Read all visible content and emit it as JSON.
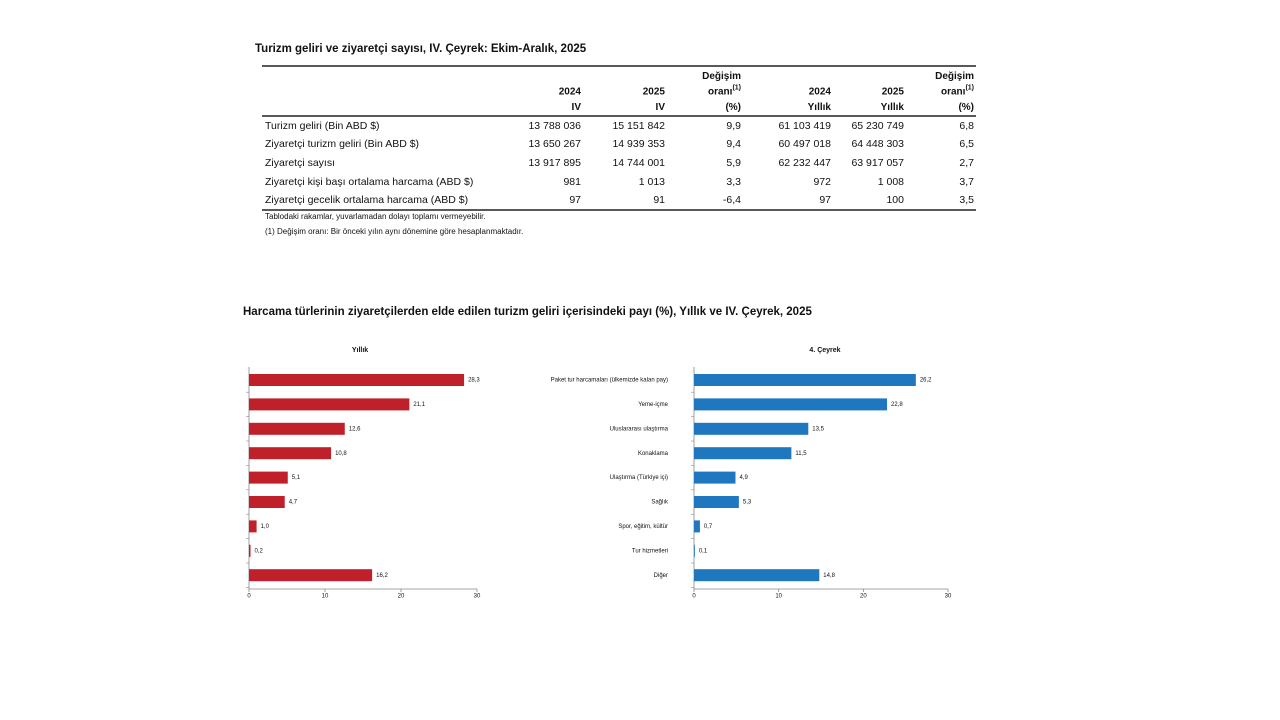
{
  "table": {
    "title": "Turizm geliri ve ziyaretçi sayısı, IV. Çeyrek: Ekim-Aralık, 2025",
    "header": [
      {
        "lines": [
          "2024",
          "IV"
        ]
      },
      {
        "lines": [
          "2025",
          "IV"
        ]
      },
      {
        "lines": [
          "Değişim",
          "oranı",
          "(%)"
        ],
        "sup": "(1)"
      },
      {
        "lines": [
          "2024",
          "Yıllık"
        ]
      },
      {
        "lines": [
          "2025",
          "Yıllık"
        ]
      },
      {
        "lines": [
          "Değişim",
          "oranı",
          "(%)"
        ],
        "sup": "(1)"
      }
    ],
    "rows": [
      {
        "label": "Turizm geliri (Bin ABD $)",
        "cells": [
          "13 788 036",
          "15 151 842",
          "9,9",
          "61 103 419",
          "65 230 749",
          "6,8"
        ]
      },
      {
        "label": "Ziyaretçi turizm geliri (Bin ABD $)",
        "cells": [
          "13 650 267",
          "14 939 353",
          "9,4",
          "60 497 018",
          "64 448 303",
          "6,5"
        ]
      },
      {
        "label": "Ziyaretçi sayısı",
        "cells": [
          "13 917 895",
          "14 744 001",
          "5,9",
          "62 232 447",
          "63 917 057",
          "2,7"
        ]
      },
      {
        "label": "Ziyaretçi kişi başı ortalama harcama (ABD $)",
        "cells": [
          "981",
          "1 013",
          "3,3",
          "972",
          "1 008",
          "3,7"
        ]
      },
      {
        "label": "Ziyaretçi gecelik ortalama harcama (ABD $)",
        "cells": [
          "97",
          "91",
          "-6,4",
          "97",
          "100",
          "3,5"
        ]
      }
    ],
    "notes": [
      "Tablodaki rakamlar, yuvarlamadan dolayı toplamı vermeyebilir.",
      "(1) Değişim oranı: Bir önceki yılın aynı dönemine göre hesaplanmaktadır."
    ]
  },
  "section_title": "Harcama türlerinin ziyaretçilerden elde edilen turizm geliri içerisindeki payı (%), Yıllık ve IV. Çeyrek, 2025",
  "chart_data": [
    {
      "type": "barh",
      "title": "Yıllık",
      "categories": [
        null,
        null,
        null,
        null,
        null,
        null,
        null,
        null,
        null
      ],
      "values": [
        28.3,
        21.1,
        12.6,
        10.8,
        5.1,
        4.7,
        1.0,
        0.2,
        16.2
      ],
      "value_labels": [
        "28,3",
        "21,1",
        "12,6",
        "10,8",
        "5,1",
        "4,7",
        "1,0",
        "0,2",
        "16,2"
      ],
      "color": "#c0202a",
      "xlim": [
        0,
        30
      ],
      "xticks": [
        0,
        10,
        20,
        30
      ]
    },
    {
      "type": "barh",
      "title": "4. Çeyrek",
      "categories": [
        "Paket tur harcamaları (ülkemizde kalan pay)",
        "Yeme-içme",
        "Uluslararası ulaştırma",
        "Konaklama",
        "Ulaştırma (Türkiye içi)",
        "Sağlık",
        "Spor, eğitim, kültür",
        "Tur hizmetleri",
        "Diğer"
      ],
      "values": [
        26.2,
        22.8,
        13.5,
        11.5,
        4.9,
        5.3,
        0.7,
        0.1,
        14.8
      ],
      "value_labels": [
        "26,2",
        "22,8",
        "13,5",
        "11,5",
        "4,9",
        "5,3",
        "0,7",
        "0,1",
        "14,8"
      ],
      "color": "#1f77c0",
      "xlim": [
        0,
        30
      ],
      "xticks": [
        0,
        10,
        20,
        30
      ]
    }
  ]
}
